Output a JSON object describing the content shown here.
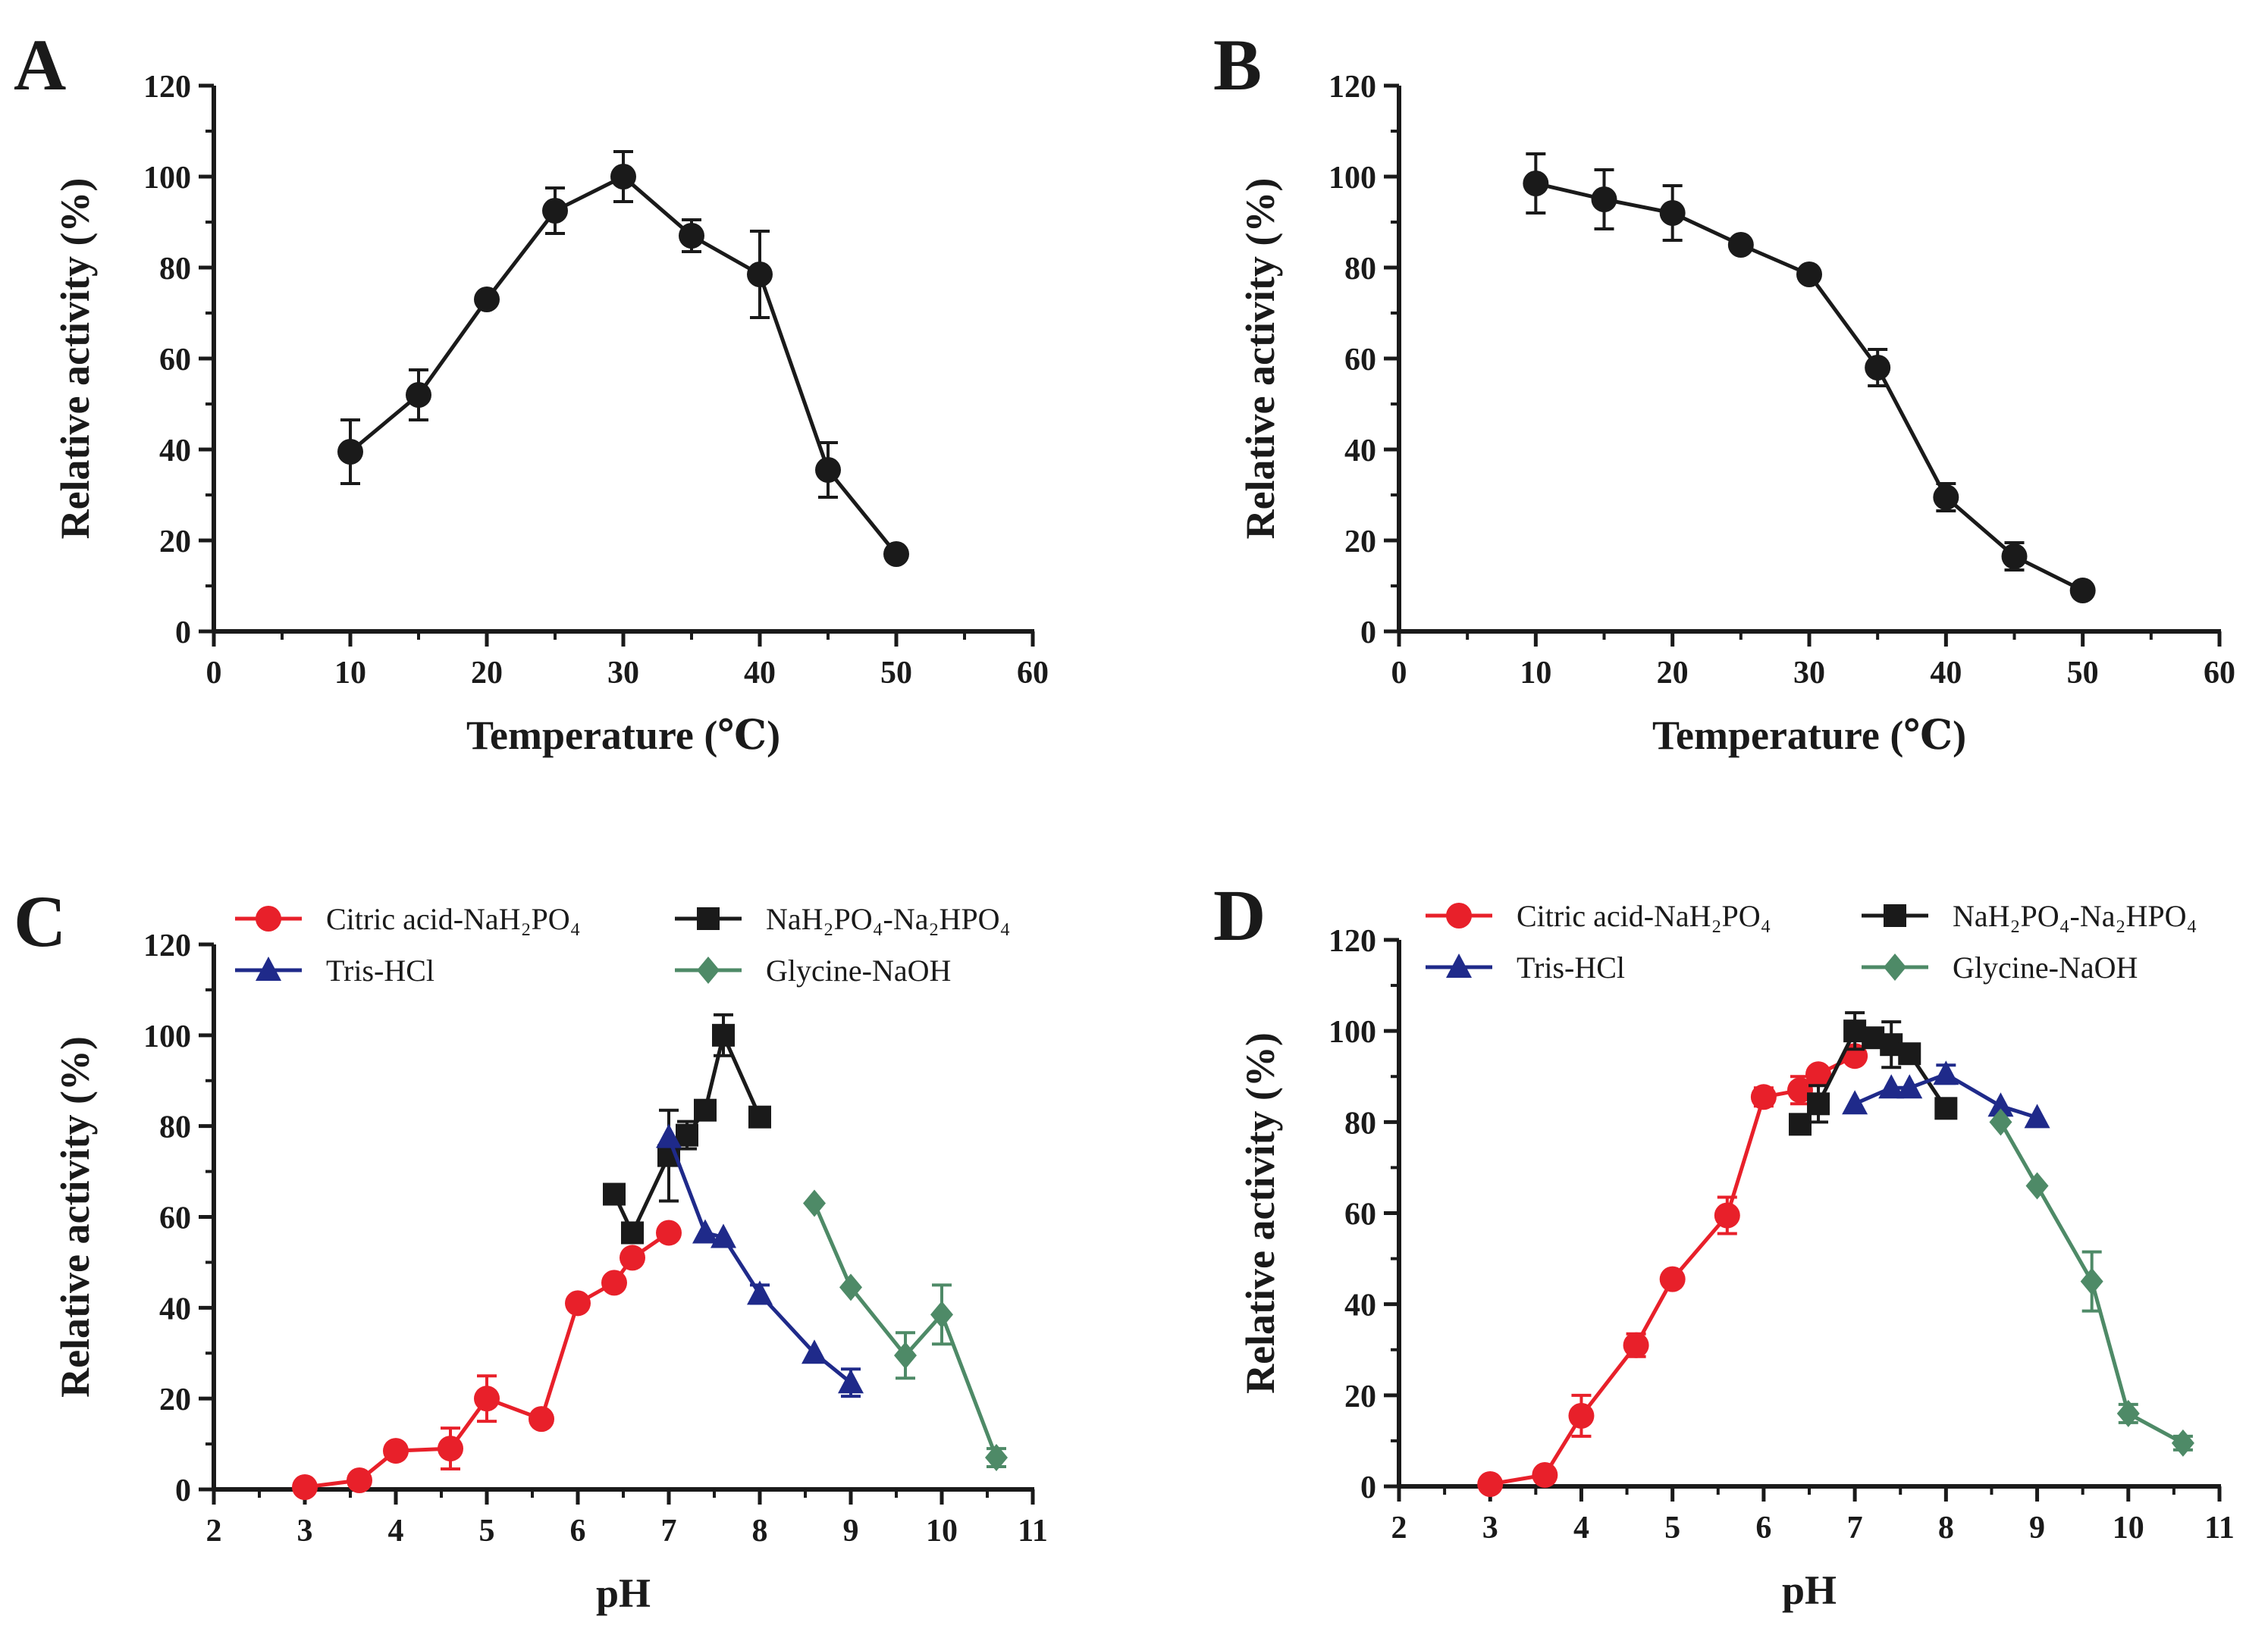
{
  "chart_data": [
    {
      "panel": "A",
      "type": "line",
      "xlabel": "Temperature (℃)",
      "ylabel": "Relative activity (%)",
      "xlim": [
        0,
        60
      ],
      "ylim": [
        0,
        120
      ],
      "xticks": [
        0,
        10,
        20,
        30,
        40,
        50,
        60
      ],
      "yticks": [
        0,
        20,
        40,
        60,
        80,
        100,
        120
      ],
      "series": [
        {
          "name": "",
          "color": "#1a1a1a",
          "marker": "circle",
          "x": [
            10,
            15,
            20,
            25,
            30,
            35,
            40,
            45,
            50
          ],
          "values": [
            39.5,
            52,
            73,
            92.5,
            100,
            87,
            78.5,
            35.5,
            17
          ],
          "errors": [
            7,
            5.5,
            0,
            5,
            5.5,
            3.5,
            9.5,
            6,
            0
          ]
        }
      ]
    },
    {
      "panel": "B",
      "type": "line",
      "xlabel": "Temperature (℃)",
      "ylabel": "Relative activity (%)",
      "xlim": [
        0,
        60
      ],
      "ylim": [
        0,
        120
      ],
      "xticks": [
        0,
        10,
        20,
        30,
        40,
        50,
        60
      ],
      "yticks": [
        0,
        20,
        40,
        60,
        80,
        100,
        120
      ],
      "series": [
        {
          "name": "",
          "color": "#1a1a1a",
          "marker": "circle",
          "x": [
            10,
            15,
            20,
            25,
            30,
            35,
            40,
            45,
            50
          ],
          "values": [
            98.5,
            95,
            92,
            85,
            78.5,
            58,
            29.5,
            16.5,
            9
          ],
          "errors": [
            6.5,
            6.5,
            6,
            0,
            0,
            4,
            3,
            3,
            0
          ]
        }
      ]
    },
    {
      "panel": "C",
      "type": "line",
      "xlabel": "pH",
      "ylabel": "Relative activity (%)",
      "xlim": [
        2,
        11
      ],
      "ylim": [
        0,
        120
      ],
      "xticks": [
        2,
        3,
        4,
        5,
        6,
        7,
        8,
        9,
        10,
        11
      ],
      "yticks": [
        0,
        20,
        40,
        60,
        80,
        100,
        120
      ],
      "series": [
        {
          "name": "Citric acid-NaH₂PO₄",
          "color": "#e8202a",
          "marker": "circle",
          "x": [
            3,
            3.6,
            4,
            4.6,
            5,
            5.6,
            6,
            6.4,
            6.6,
            7
          ],
          "values": [
            0.5,
            2,
            8.5,
            9,
            20,
            15.5,
            41,
            45.5,
            51,
            56.5
          ],
          "errors": [
            0,
            0,
            0,
            4.5,
            5,
            0,
            0,
            0,
            0,
            0
          ]
        },
        {
          "name": "NaH₂PO₄-Na₂HPO₄",
          "color": "#1a1a1a",
          "marker": "square",
          "x": [
            6.4,
            6.6,
            7,
            7.2,
            7.4,
            7.6,
            8
          ],
          "values": [
            65,
            56.5,
            73.5,
            78,
            83.5,
            100,
            82
          ],
          "errors": [
            0,
            0,
            10,
            3,
            0,
            4.5,
            2
          ]
        },
        {
          "name": "Tris-HCl",
          "color": "#1f2a8a",
          "marker": "triangle",
          "x": [
            7,
            7.4,
            7.6,
            8,
            8.6,
            9
          ],
          "values": [
            77.5,
            56.5,
            55.5,
            43,
            30,
            23.5
          ],
          "errors": [
            0,
            0,
            0,
            2,
            0,
            3
          ]
        },
        {
          "name": "Glycine-NaOH",
          "color": "#4e8a67",
          "marker": "diamond",
          "x": [
            8.6,
            9,
            9.6,
            10,
            10.6
          ],
          "values": [
            63,
            44.5,
            29.5,
            38.5,
            7
          ],
          "errors": [
            0,
            0,
            5,
            6.5,
            2
          ]
        }
      ]
    },
    {
      "panel": "D",
      "type": "line",
      "xlabel": "pH",
      "ylabel": "Relative activity (%)",
      "xlim": [
        2,
        11
      ],
      "ylim": [
        0,
        120
      ],
      "xticks": [
        2,
        3,
        4,
        5,
        6,
        7,
        8,
        9,
        10,
        11
      ],
      "yticks": [
        0,
        20,
        40,
        60,
        80,
        100,
        120
      ],
      "series": [
        {
          "name": "Citric acid-NaH₂PO₄",
          "color": "#e8202a",
          "marker": "circle",
          "x": [
            3,
            3.6,
            4,
            4.6,
            5,
            5.6,
            6,
            6.4,
            6.6,
            7
          ],
          "values": [
            0.5,
            2.5,
            15.5,
            31,
            45.5,
            59.5,
            85.5,
            87,
            90.5,
            94.5
          ],
          "errors": [
            0,
            0,
            4.5,
            2.5,
            0,
            4,
            2,
            3,
            0,
            0
          ]
        },
        {
          "name": "NaH₂PO₄-Na₂HPO₄",
          "color": "#1a1a1a",
          "marker": "square",
          "x": [
            6.4,
            6.6,
            7,
            7.2,
            7.4,
            7.6,
            8
          ],
          "values": [
            79.5,
            84,
            100,
            98.5,
            97,
            95,
            83
          ],
          "errors": [
            0,
            4,
            4,
            0,
            5,
            0,
            2
          ]
        },
        {
          "name": "Tris-HCl",
          "color": "#1f2a8a",
          "marker": "triangle",
          "x": [
            7,
            7.4,
            7.6,
            8,
            8.6,
            9
          ],
          "values": [
            84,
            87.5,
            87.5,
            90.5,
            83.5,
            81
          ],
          "errors": [
            0,
            0,
            0,
            2,
            0,
            0
          ]
        },
        {
          "name": "Glycine-NaOH",
          "color": "#4e8a67",
          "marker": "diamond",
          "x": [
            8.6,
            9,
            9.6,
            10,
            10.6
          ],
          "values": [
            80,
            66,
            45,
            16,
            9.5
          ],
          "errors": [
            0,
            0,
            6.5,
            2,
            1.5
          ]
        }
      ]
    }
  ]
}
